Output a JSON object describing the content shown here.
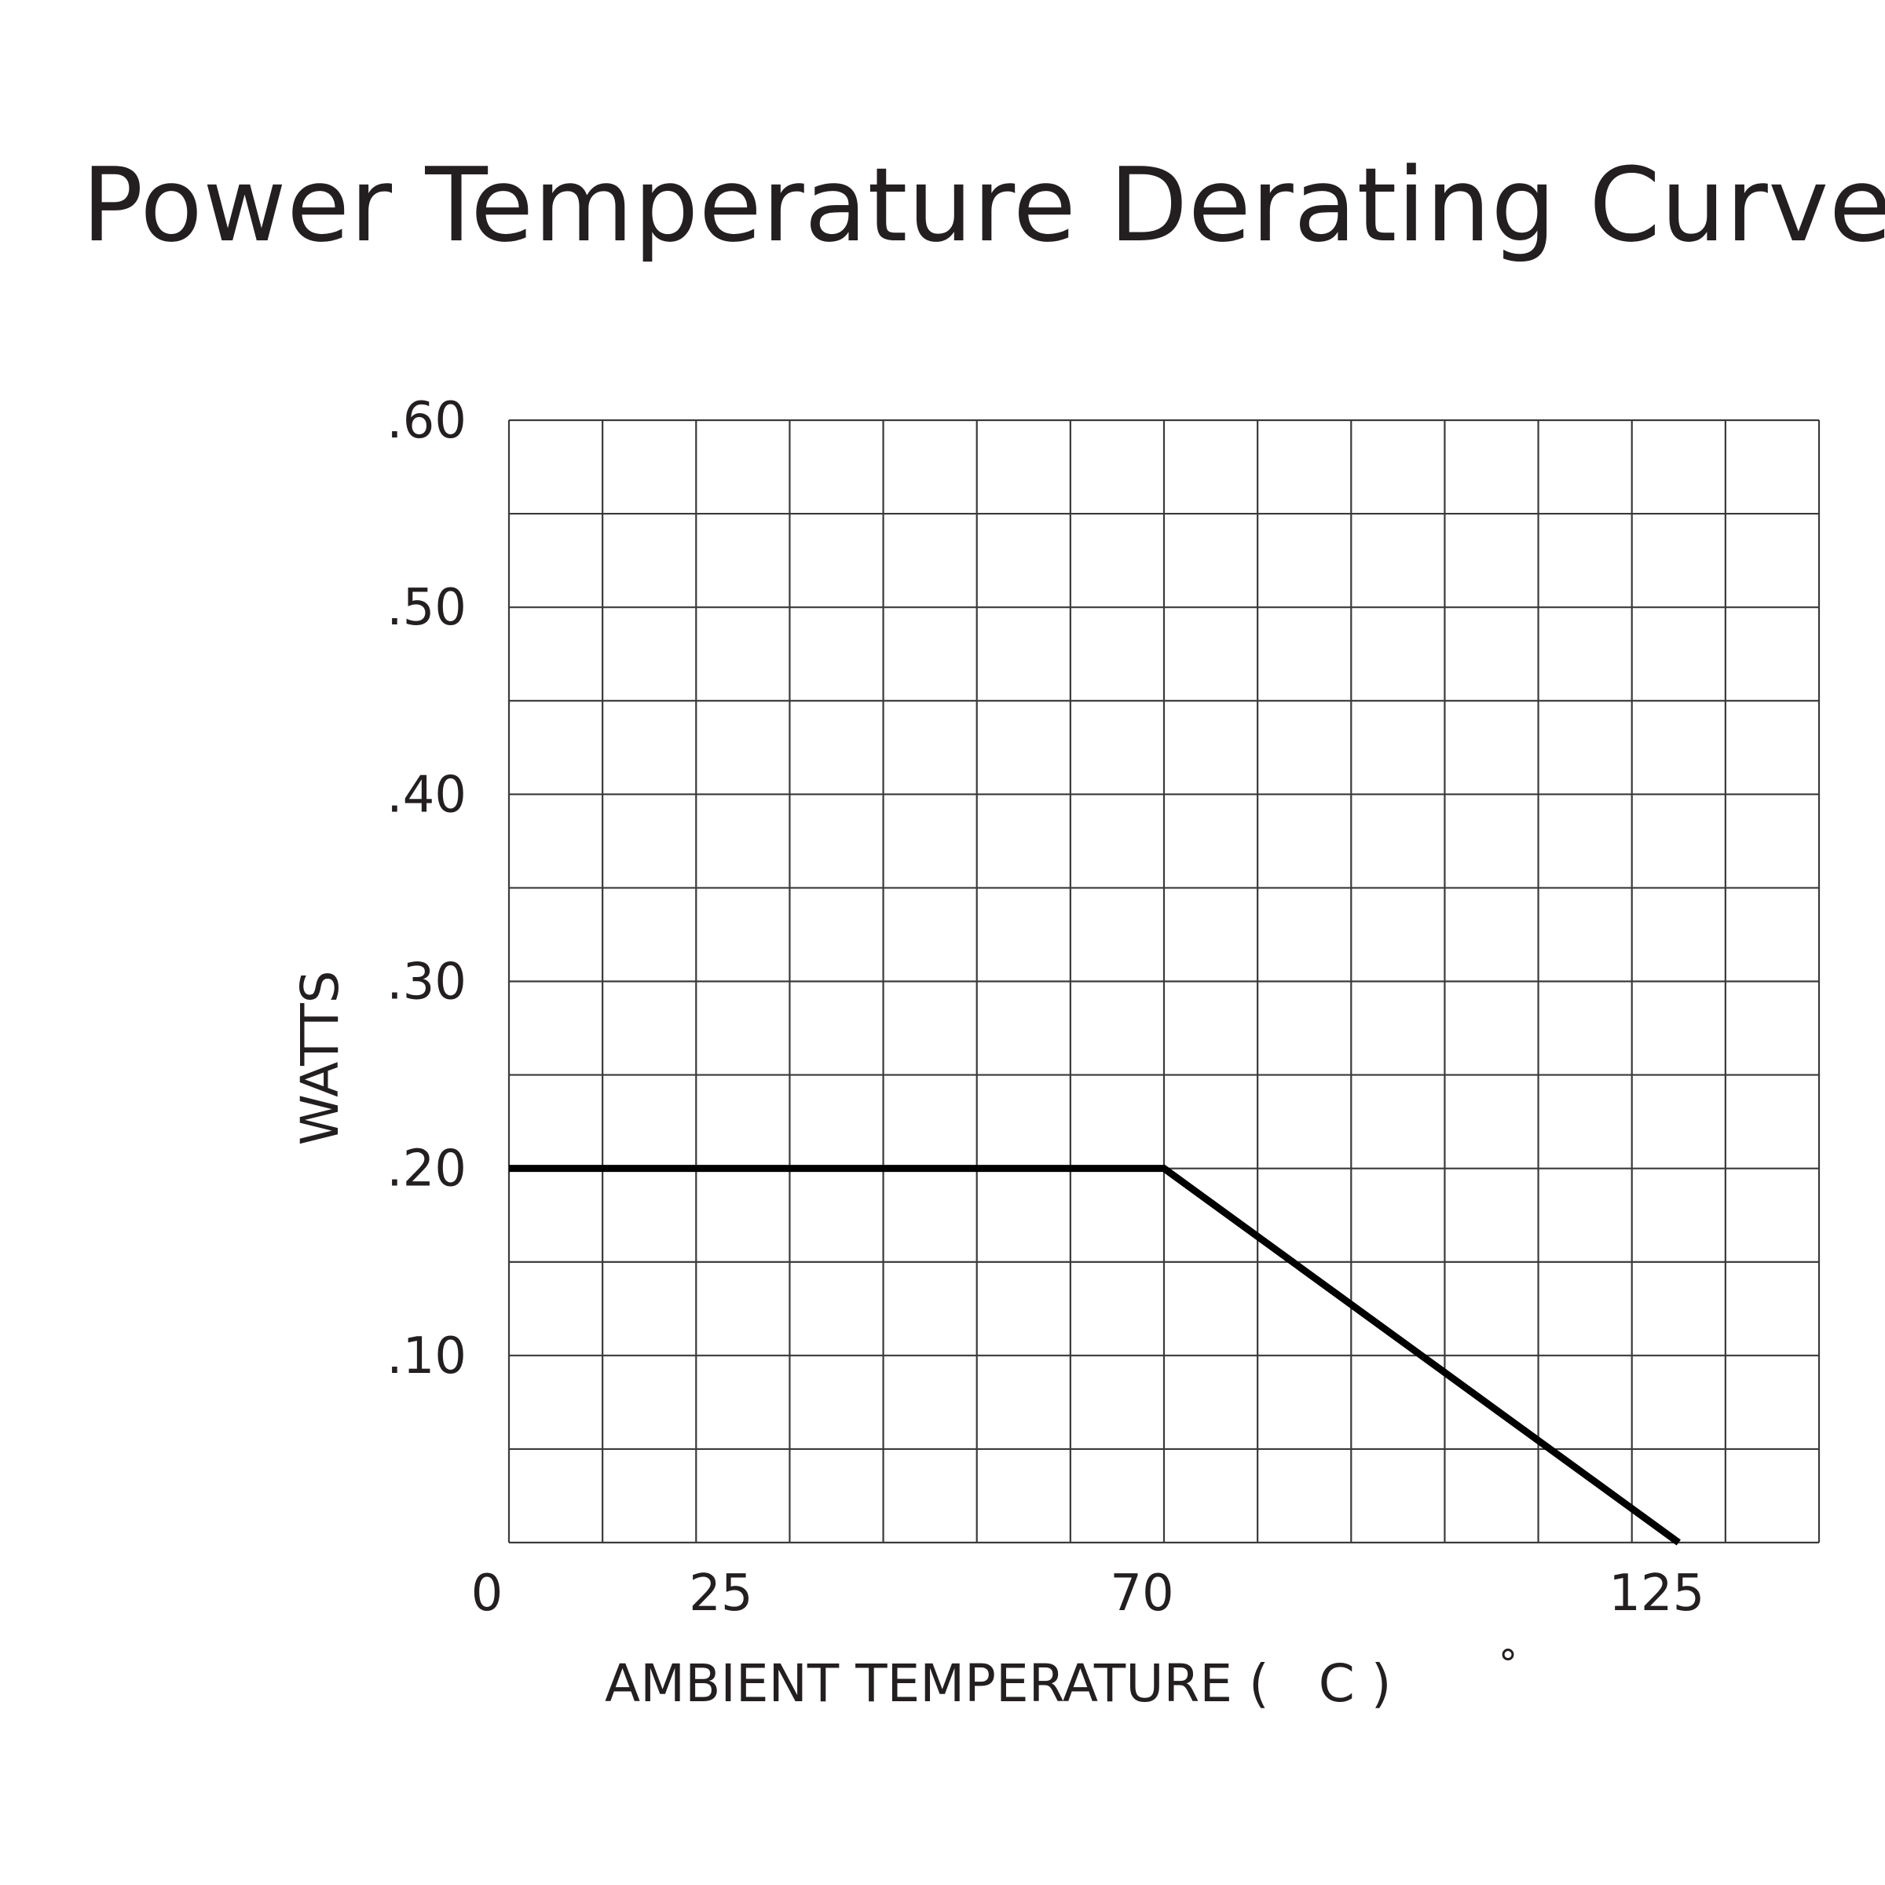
{
  "chart_data": {
    "type": "line",
    "title": "Power Temperature Derating Curve",
    "xlabel": "AMBIENT TEMPERATURE (   C )",
    "xlabel_degree": "°",
    "ylabel": "WATTS",
    "xlim": [
      0,
      140
    ],
    "ylim": [
      0,
      0.6
    ],
    "x_ticks": [
      {
        "value": 0,
        "label": "0"
      },
      {
        "value": 25,
        "label": "25"
      },
      {
        "value": 70,
        "label": "70"
      },
      {
        "value": 125,
        "label": "125"
      }
    ],
    "y_ticks": [
      {
        "value": 0.1,
        "label": ".10"
      },
      {
        "value": 0.2,
        "label": ".20"
      },
      {
        "value": 0.3,
        "label": ".30"
      },
      {
        "value": 0.4,
        "label": ".40"
      },
      {
        "value": 0.5,
        "label": ".50"
      },
      {
        "value": 0.6,
        "label": ".60"
      }
    ],
    "grid": true,
    "grid_x_step": 10,
    "grid_y_step": 0.05,
    "series": [
      {
        "x": [
          0,
          70,
          125
        ],
        "y": [
          0.2,
          0.2,
          0
        ]
      }
    ],
    "colors": {
      "line": "#000000",
      "grid": "#3a3a3a",
      "text": "#231f20"
    }
  }
}
